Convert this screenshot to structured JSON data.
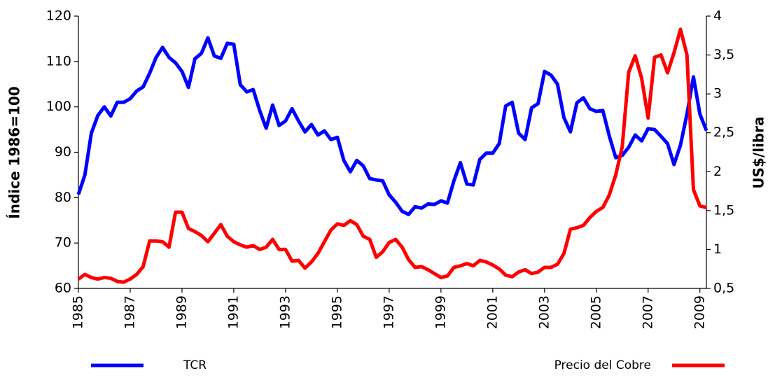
{
  "chart_data": {
    "type": "line",
    "y_label": "Índice 1986=100",
    "y2_label": "US$/libra",
    "x": [
      1985,
      1985.25,
      1985.5,
      1985.75,
      1986,
      1986.25,
      1986.5,
      1986.75,
      1987,
      1987.25,
      1987.5,
      1987.75,
      1988,
      1988.25,
      1988.5,
      1988.75,
      1989,
      1989.25,
      1989.5,
      1989.75,
      1990,
      1990.25,
      1990.5,
      1990.75,
      1991,
      1991.25,
      1991.5,
      1991.75,
      1992,
      1992.25,
      1992.5,
      1992.75,
      1993,
      1993.25,
      1993.5,
      1993.75,
      1994,
      1994.25,
      1994.5,
      1994.75,
      1995,
      1995.25,
      1995.5,
      1995.75,
      1996,
      1996.25,
      1996.5,
      1996.75,
      1997,
      1997.25,
      1997.5,
      1997.75,
      1998,
      1998.25,
      1998.5,
      1998.75,
      1999,
      1999.25,
      1999.5,
      1999.75,
      2000,
      2000.25,
      2000.5,
      2000.75,
      2001,
      2001.25,
      2001.5,
      2001.75,
      2002,
      2002.25,
      2002.5,
      2002.75,
      2003,
      2003.25,
      2003.5,
      2003.75,
      2004,
      2004.25,
      2004.5,
      2004.75,
      2005,
      2005.25,
      2005.5,
      2005.75,
      2006,
      2006.25,
      2006.5,
      2006.75,
      2007,
      2007.25,
      2007.5,
      2007.75,
      2008,
      2008.25,
      2008.5,
      2008.75,
      2009,
      2009.25
    ],
    "series": [
      {
        "name": "TCR",
        "color": "#0000ff",
        "values": [
          80.7,
          85,
          94.2,
          98.1,
          100,
          98,
          101,
          101,
          101.8,
          103.5,
          104.4,
          107.4,
          110.9,
          113.1,
          110.9,
          109.7,
          107.8,
          104.3,
          110.6,
          111.8,
          115.2,
          111.2,
          110.7,
          114,
          113.8,
          104.9,
          103.3,
          103.8,
          99.2,
          95.3,
          100.4,
          95.9,
          96.9,
          99.6,
          96.9,
          94.5,
          96.1,
          93.8,
          94.7,
          92.8,
          93.3,
          88.2,
          85.7,
          88.2,
          87,
          84.2,
          83.9,
          83.7,
          80.6,
          79,
          77,
          76.3,
          78,
          77.7,
          78.6,
          78.5,
          79.3,
          78.8,
          83.7,
          87.7,
          83,
          82.8,
          88.4,
          89.8,
          89.8,
          91.9,
          100.2,
          101,
          94.2,
          92.8,
          99.8,
          100.7,
          107.8,
          107,
          105,
          97.6,
          94.5,
          100.9,
          102,
          99.6,
          99,
          99.2,
          93.6,
          88.8,
          89.3,
          91.1,
          93.8,
          92.5,
          95.2,
          95,
          93.5,
          91.9,
          87.3,
          91.6,
          98.4,
          106.6,
          98.4,
          94.8
        ]
      },
      {
        "name": "Precio del Cobre",
        "color": "#ff0000",
        "axis": "y2",
        "values": [
          0.62,
          0.68,
          0.64,
          0.62,
          0.64,
          0.63,
          0.59,
          0.58,
          0.62,
          0.68,
          0.78,
          1.11,
          1.11,
          1.1,
          1.03,
          1.48,
          1.48,
          1.27,
          1.23,
          1.18,
          1.1,
          1.21,
          1.32,
          1.17,
          1.1,
          1.06,
          1.03,
          1.05,
          1,
          1.03,
          1.13,
          1,
          1,
          0.85,
          0.86,
          0.76,
          0.84,
          0.95,
          1.1,
          1.25,
          1.33,
          1.31,
          1.37,
          1.32,
          1.17,
          1.13,
          0.9,
          0.97,
          1.09,
          1.13,
          1.03,
          0.87,
          0.77,
          0.78,
          0.74,
          0.69,
          0.64,
          0.66,
          0.77,
          0.79,
          0.82,
          0.79,
          0.86,
          0.84,
          0.8,
          0.75,
          0.67,
          0.65,
          0.71,
          0.74,
          0.69,
          0.71,
          0.77,
          0.77,
          0.81,
          0.95,
          1.26,
          1.28,
          1.31,
          1.41,
          1.49,
          1.54,
          1.7,
          1.96,
          2.32,
          3.28,
          3.49,
          3.2,
          2.69,
          3.47,
          3.5,
          3.27,
          3.53,
          3.83,
          3.5,
          1.77,
          1.56,
          1.54
        ]
      }
    ],
    "xlim": [
      1985,
      2009.25
    ],
    "xticks": [
      1985,
      1987,
      1989,
      1991,
      1993,
      1995,
      1997,
      1999,
      2001,
      2003,
      2005,
      2007,
      2009
    ],
    "ylim": [
      60,
      120
    ],
    "yticks": [
      60,
      70,
      80,
      90,
      100,
      110,
      120
    ],
    "y2lim": [
      0.5,
      4
    ],
    "y2ticks": [
      {
        "value": 0.5,
        "label": "0,5"
      },
      1,
      {
        "value": 1.5,
        "label": "1,5"
      },
      2,
      {
        "value": 2.5,
        "label": "2,5"
      },
      3,
      {
        "value": 3.5,
        "label": "3,5"
      },
      4
    ],
    "grid": false
  }
}
